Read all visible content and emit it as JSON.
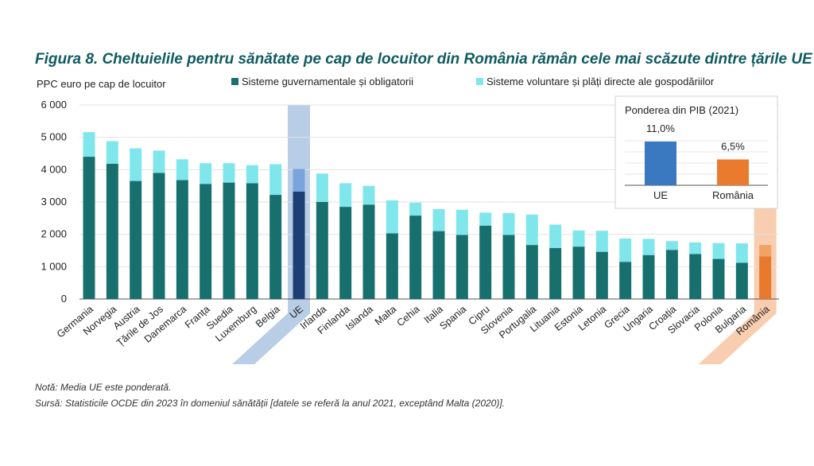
{
  "figure": {
    "title": "Figura 8. Cheltuielile pentru sănătate pe cap de locuitor din România rămân cele mai scăzute dintre țările UE",
    "note": "Notă: Media UE este ponderată.",
    "source": "Sursă: Statisticile OCDE din 2023 în domeniul sănătății [datele se referă la anul 2021, exceptând Malta (2020)]."
  },
  "colors": {
    "government": "#17706e",
    "voluntary": "#7fe6ec",
    "eu_government": "#1d3f73",
    "eu_voluntary": "#7aa5dc",
    "eu_highlight": "#b8cde6",
    "romania_government": "#e9792d",
    "romania_voluntary": "#f3a266",
    "romania_highlight": "#f8cdb0",
    "inset_eu": "#3a78c0",
    "inset_romania": "#ea7a2e"
  },
  "chart_data": [
    {
      "type": "bar",
      "stacked": true,
      "ylabel": "PPC euro pe cap de locuitor",
      "ylim": [
        0,
        6000
      ],
      "yticks": [
        0,
        1000,
        2000,
        3000,
        4000,
        5000,
        6000
      ],
      "ytick_labels": [
        "0",
        "1 000",
        "2 000",
        "3 000",
        "4 000",
        "5 000",
        "6 000"
      ],
      "grid": true,
      "legend_position": "top",
      "categories": [
        "Germania",
        "Norvegia",
        "Austria",
        "Țările de Jos",
        "Danemarca",
        "Franța",
        "Suedia",
        "Luxemburg",
        "Belgia",
        "UE",
        "Irlanda",
        "Finlanda",
        "Islanda",
        "Malta",
        "Cehia",
        "Italia",
        "Spania",
        "Cipru",
        "Slovenia",
        "Portugalia",
        "Lituania",
        "Estonia",
        "Letonia",
        "Grecia",
        "Ungaria",
        "Croația",
        "Slovacia",
        "Polonia",
        "Bulgaria",
        "România"
      ],
      "series": [
        {
          "name": "Sisteme guvernamentale și obligatorii",
          "values": [
            4400,
            4180,
            3650,
            3900,
            3680,
            3560,
            3600,
            3580,
            3220,
            3320,
            3000,
            2850,
            2920,
            2030,
            2580,
            2100,
            1980,
            2270,
            1980,
            1670,
            1580,
            1620,
            1460,
            1150,
            1360,
            1520,
            1390,
            1240,
            1120,
            1320
          ]
        },
        {
          "name": "Sisteme voluntare și plăți directe ale gospodăriilor",
          "values": [
            760,
            700,
            1010,
            690,
            640,
            640,
            600,
            560,
            950,
            700,
            880,
            730,
            580,
            1020,
            400,
            680,
            780,
            400,
            680,
            940,
            720,
            500,
            650,
            720,
            500,
            270,
            360,
            490,
            600,
            350
          ]
        }
      ]
    },
    {
      "type": "bar",
      "title": "Ponderea din PIB (2021)",
      "categories": [
        "UE",
        "România"
      ],
      "values": [
        11.0,
        6.5
      ],
      "value_labels": [
        "11,0%",
        "6,5%"
      ],
      "ylim": [
        0,
        14
      ],
      "grid": true
    }
  ]
}
